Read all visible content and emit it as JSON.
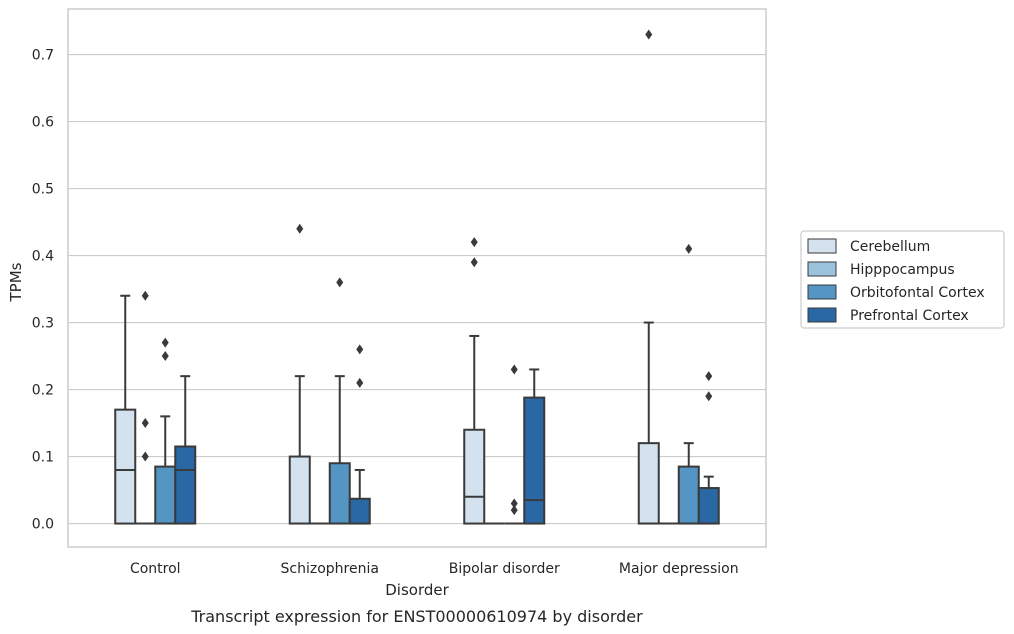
{
  "chart_data": {
    "type": "boxplot",
    "caption": "Transcript expression for ENST00000610974 by disorder",
    "xlabel": "Disorder",
    "ylabel": "TPMs",
    "ylim": [
      -0.035,
      0.768
    ],
    "yticks": [
      0.0,
      0.1,
      0.2,
      0.3,
      0.4,
      0.5,
      0.6,
      0.7
    ],
    "ytick_labels": [
      "0.0",
      "0.1",
      "0.2",
      "0.3",
      "0.4",
      "0.5",
      "0.6",
      "0.7"
    ],
    "grid": "horizontal",
    "legend_position": "right",
    "categories": [
      "Control",
      "Schizophrenia",
      "Bipolar disorder",
      "Major depression"
    ],
    "series": [
      {
        "name": "Cerebellum",
        "color": "#d4e2f0",
        "boxes": [
          {
            "whisker_low": 0.0,
            "q1": 0.0,
            "median": 0.08,
            "q3": 0.17,
            "whisker_high": 0.34,
            "outliers": []
          },
          {
            "whisker_low": 0.0,
            "q1": 0.0,
            "median": 0.0,
            "q3": 0.1,
            "whisker_high": 0.22,
            "outliers": [
              0.44
            ]
          },
          {
            "whisker_low": 0.0,
            "q1": 0.0,
            "median": 0.04,
            "q3": 0.14,
            "whisker_high": 0.28,
            "outliers": [
              0.39,
              0.42
            ]
          },
          {
            "whisker_low": 0.0,
            "q1": 0.0,
            "median": 0.0,
            "q3": 0.12,
            "whisker_high": 0.3,
            "outliers": [
              0.73
            ]
          }
        ]
      },
      {
        "name": "Hipppocampus",
        "color": "#9bc3dd",
        "boxes": [
          {
            "whisker_low": 0.0,
            "q1": 0.0,
            "median": 0.0,
            "q3": 0.0,
            "whisker_high": 0.0,
            "outliers": [
              0.1,
              0.15,
              0.34
            ]
          },
          {
            "whisker_low": 0.0,
            "q1": 0.0,
            "median": 0.0,
            "q3": 0.0,
            "whisker_high": 0.0,
            "outliers": []
          },
          {
            "whisker_low": 0.0,
            "q1": 0.0,
            "median": 0.0,
            "q3": 0.0,
            "whisker_high": 0.0,
            "outliers": []
          },
          {
            "whisker_low": 0.0,
            "q1": 0.0,
            "median": 0.0,
            "q3": 0.0,
            "whisker_high": 0.0,
            "outliers": []
          }
        ]
      },
      {
        "name": "Orbitofontal Cortex",
        "color": "#5595c4",
        "boxes": [
          {
            "whisker_low": 0.0,
            "q1": 0.0,
            "median": 0.0,
            "q3": 0.085,
            "whisker_high": 0.16,
            "outliers": [
              0.25,
              0.27
            ]
          },
          {
            "whisker_low": 0.0,
            "q1": 0.0,
            "median": 0.0,
            "q3": 0.09,
            "whisker_high": 0.22,
            "outliers": [
              0.36
            ]
          },
          {
            "whisker_low": 0.0,
            "q1": 0.0,
            "median": 0.0,
            "q3": 0.0,
            "whisker_high": 0.0,
            "outliers": [
              0.02,
              0.03,
              0.23
            ]
          },
          {
            "whisker_low": 0.0,
            "q1": 0.0,
            "median": 0.0,
            "q3": 0.085,
            "whisker_high": 0.12,
            "outliers": [
              0.41
            ]
          }
        ]
      },
      {
        "name": "Prefrontal Cortex",
        "color": "#2a67a5",
        "boxes": [
          {
            "whisker_low": 0.0,
            "q1": 0.0,
            "median": 0.08,
            "q3": 0.115,
            "whisker_high": 0.22,
            "outliers": []
          },
          {
            "whisker_low": 0.0,
            "q1": 0.0,
            "median": 0.0,
            "q3": 0.037,
            "whisker_high": 0.08,
            "outliers": [
              0.21,
              0.26
            ]
          },
          {
            "whisker_low": 0.0,
            "q1": 0.0,
            "median": 0.035,
            "q3": 0.188,
            "whisker_high": 0.23,
            "outliers": []
          },
          {
            "whisker_low": 0.0,
            "q1": 0.0,
            "median": 0.0,
            "q3": 0.053,
            "whisker_high": 0.07,
            "outliers": [
              0.19,
              0.22
            ]
          }
        ]
      }
    ]
  }
}
